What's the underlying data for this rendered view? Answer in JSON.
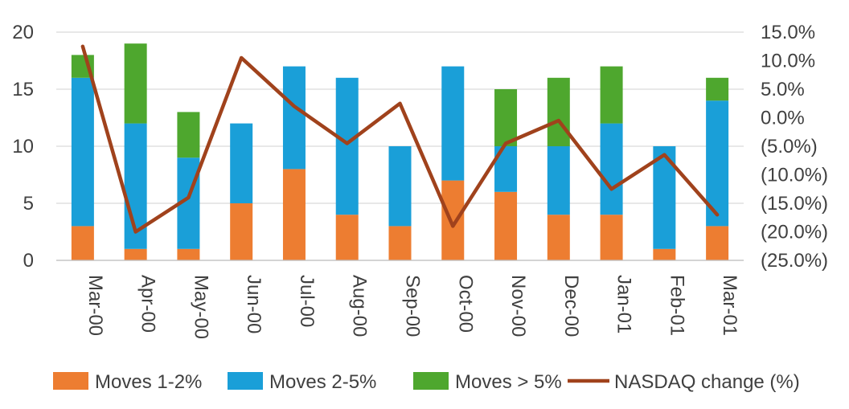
{
  "chart_data": {
    "type": "bar",
    "stacked": true,
    "categories": [
      "Mar-00",
      "Apr-00",
      "May-00",
      "Jun-00",
      "Jul-00",
      "Aug-00",
      "Sep-00",
      "Oct-00",
      "Nov-00",
      "Dec-00",
      "Jan-01",
      "Feb-01",
      "Mar-01"
    ],
    "series": [
      {
        "name": "Moves 1-2%",
        "type": "bar",
        "color": "#ED7D31",
        "values": [
          3,
          1,
          1,
          5,
          8,
          4,
          3,
          7,
          6,
          4,
          4,
          1,
          3
        ]
      },
      {
        "name": "Moves 2-5%",
        "type": "bar",
        "color": "#1A9FD8",
        "values": [
          13,
          11,
          8,
          7,
          9,
          12,
          7,
          10,
          4,
          6,
          8,
          9,
          11
        ]
      },
      {
        "name": "Moves > 5%",
        "type": "bar",
        "color": "#4EA72E",
        "values": [
          2,
          7,
          4,
          0,
          0,
          0,
          0,
          0,
          5,
          6,
          5,
          0,
          2
        ]
      },
      {
        "name": "NASDAQ change (%)",
        "type": "line",
        "axis": "right",
        "color": "#A0421C",
        "values": [
          12.5,
          -20.0,
          -14.0,
          10.5,
          2.0,
          -4.5,
          2.5,
          -19.0,
          -4.5,
          -0.5,
          -12.5,
          -6.5,
          -17.0
        ]
      }
    ],
    "y_left": {
      "min": 0,
      "max": 20,
      "ticks": [
        "0",
        "5",
        "10",
        "15",
        "20"
      ]
    },
    "y_right": {
      "min": -25,
      "max": 15,
      "ticks": [
        "15.0%",
        "10.0%",
        "5.0%",
        "0.0%",
        "(5.0%)",
        "(10.0%)",
        "(15.0%)",
        "(20.0%)",
        "(25.0%)"
      ]
    },
    "grid": true,
    "legend_position": "bottom",
    "title": "",
    "xlabel": "",
    "ylabel": ""
  }
}
